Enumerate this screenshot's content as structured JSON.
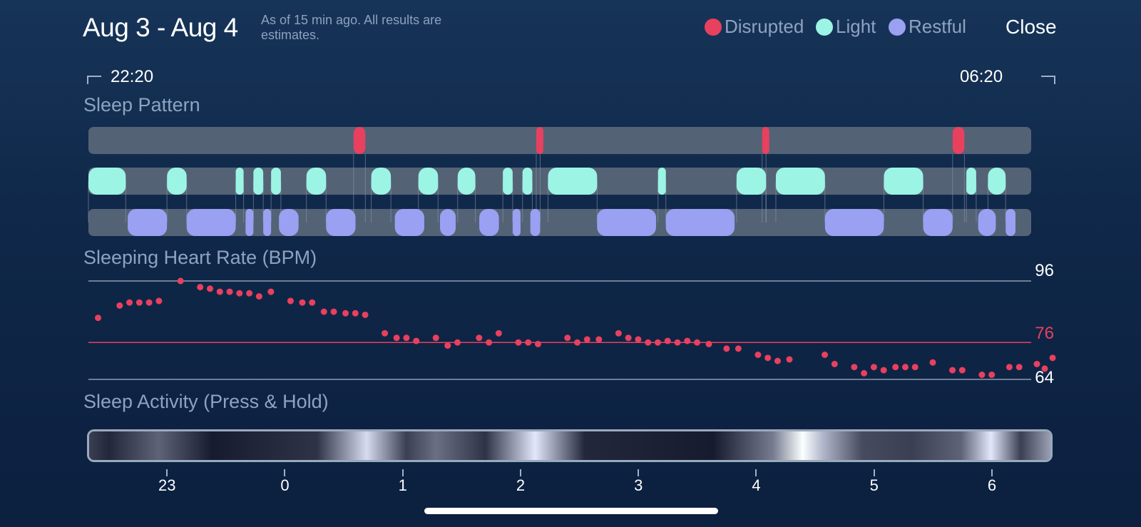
{
  "header": {
    "date_range": "Aug 3 - Aug 4",
    "note": "As of 15 min ago. All results are estimates.",
    "close_label": "Close"
  },
  "legend": [
    {
      "label": "Disrupted",
      "color": "#e8405f"
    },
    {
      "label": "Light",
      "color": "#9cf4e4"
    },
    {
      "label": "Restful",
      "color": "#9aa0f2"
    }
  ],
  "time_range": {
    "start": "22:20",
    "end": "06:20"
  },
  "sections": {
    "pattern": "Sleep Pattern",
    "heart_rate": "Sleeping Heart Rate (BPM)",
    "activity": "Sleep Activity (Press & Hold)"
  },
  "heart_rate_labels": {
    "max": "96",
    "avg": "76",
    "min": "64"
  },
  "colors": {
    "disrupted": "#e8405f",
    "light": "#9cf4e4",
    "restful": "#9aa0f2",
    "track": "#546276",
    "hr_dot": "#e8405f",
    "hr_avg_line": "#e8405f",
    "hr_grid": "#8e9bb0"
  },
  "time_axis": {
    "labels": [
      "23",
      "0",
      "1",
      "2",
      "3",
      "4",
      "5",
      "6"
    ],
    "hours_from_start": [
      0.667,
      1.667,
      2.667,
      3.667,
      4.667,
      5.667,
      6.667,
      7.667
    ]
  },
  "chart_data": [
    {
      "type": "timeline",
      "title": "Sleep Pattern",
      "unit": "minutes since 22:20",
      "categories": [
        "Disrupted",
        "Light",
        "Restful"
      ],
      "segments": {
        "Disrupted": [
          [
            135,
            141
          ],
          [
            228,
            230
          ],
          [
            343,
            345
          ],
          [
            440,
            446
          ]
        ],
        "Light": [
          [
            0,
            19
          ],
          [
            40,
            50
          ],
          [
            75,
            79
          ],
          [
            84,
            89
          ],
          [
            93,
            98
          ],
          [
            111,
            121
          ],
          [
            144,
            154
          ],
          [
            168,
            178
          ],
          [
            188,
            197
          ],
          [
            211,
            216
          ],
          [
            221,
            226
          ],
          [
            234,
            259
          ],
          [
            290,
            294
          ],
          [
            330,
            345
          ],
          [
            350,
            375
          ],
          [
            405,
            425
          ],
          [
            447,
            452
          ],
          [
            458,
            467
          ]
        ],
        "Restful": [
          [
            20,
            40
          ],
          [
            50,
            75
          ],
          [
            80,
            84
          ],
          [
            89,
            93
          ],
          [
            97,
            107
          ],
          [
            121,
            136
          ],
          [
            156,
            171
          ],
          [
            179,
            187
          ],
          [
            199,
            209
          ],
          [
            216,
            220
          ],
          [
            225,
            230
          ],
          [
            259,
            289
          ],
          [
            294,
            329
          ],
          [
            375,
            405
          ],
          [
            425,
            440
          ],
          [
            453,
            462
          ],
          [
            467,
            472
          ]
        ]
      }
    },
    {
      "type": "scatter",
      "title": "Sleeping Heart Rate (BPM)",
      "x_unit": "minutes since 22:20",
      "ylabel": "BPM",
      "ylim": [
        64,
        96
      ],
      "average": 76,
      "points": [
        [
          2,
          84
        ],
        [
          13,
          88
        ],
        [
          18,
          89
        ],
        [
          23,
          89
        ],
        [
          28,
          89
        ],
        [
          33,
          89.5
        ],
        [
          44,
          96
        ],
        [
          54,
          94
        ],
        [
          59,
          93.5
        ],
        [
          64,
          92.5
        ],
        [
          69,
          92.5
        ],
        [
          74,
          92
        ],
        [
          79,
          92
        ],
        [
          84,
          91
        ],
        [
          90,
          92.5
        ],
        [
          100,
          89.5
        ],
        [
          106,
          89
        ],
        [
          111,
          89
        ],
        [
          117,
          86
        ],
        [
          122,
          86
        ],
        [
          128,
          85.5
        ],
        [
          133,
          85.5
        ],
        [
          138,
          85
        ],
        [
          148,
          79
        ],
        [
          154,
          77.5
        ],
        [
          159,
          77.5
        ],
        [
          164,
          76.5
        ],
        [
          174,
          77.5
        ],
        [
          180,
          75
        ],
        [
          185,
          76
        ],
        [
          196,
          77.5
        ],
        [
          201,
          76
        ],
        [
          206,
          79
        ],
        [
          216,
          76
        ],
        [
          221,
          76
        ],
        [
          226,
          75.5
        ],
        [
          241,
          77.5
        ],
        [
          246,
          76
        ],
        [
          251,
          77
        ],
        [
          257,
          77
        ],
        [
          267,
          79
        ],
        [
          272,
          77.5
        ],
        [
          277,
          77
        ],
        [
          282,
          76
        ],
        [
          287,
          76
        ],
        [
          292,
          76.5
        ],
        [
          297,
          76
        ],
        [
          302,
          76.5
        ],
        [
          307,
          76
        ],
        [
          313,
          75.5
        ],
        [
          322,
          74
        ],
        [
          328,
          74
        ],
        [
          338,
          72
        ],
        [
          343,
          71
        ],
        [
          348,
          70
        ],
        [
          354,
          70.5
        ],
        [
          372,
          72
        ],
        [
          377,
          69
        ],
        [
          387,
          68
        ],
        [
          392,
          66
        ],
        [
          397,
          68
        ],
        [
          402,
          67
        ],
        [
          408,
          68
        ],
        [
          413,
          68
        ],
        [
          418,
          68
        ],
        [
          427,
          69.5
        ],
        [
          437,
          67
        ],
        [
          442,
          67
        ],
        [
          452,
          65.5
        ],
        [
          457,
          65.5
        ],
        [
          466,
          68
        ],
        [
          471,
          68
        ],
        [
          480,
          69
        ],
        [
          484,
          67.5
        ],
        [
          488,
          71
        ]
      ]
    },
    {
      "type": "heatmap",
      "title": "Sleep Activity (Press & Hold)",
      "x_unit": "minutes since 22:20",
      "intensity_segments": [
        [
          0,
          0.2
        ],
        [
          10,
          0.1
        ],
        [
          35,
          0.35
        ],
        [
          62,
          0.05
        ],
        [
          115,
          0.15
        ],
        [
          140,
          0.85
        ],
        [
          160,
          0.2
        ],
        [
          175,
          0.4
        ],
        [
          200,
          0.15
        ],
        [
          225,
          0.9
        ],
        [
          250,
          0.1
        ],
        [
          315,
          0.05
        ],
        [
          345,
          0.45
        ],
        [
          360,
          1.0
        ],
        [
          370,
          0.7
        ],
        [
          390,
          0.25
        ],
        [
          415,
          0.2
        ],
        [
          440,
          0.35
        ],
        [
          455,
          0.9
        ],
        [
          470,
          0.2
        ],
        [
          485,
          0.6
        ]
      ]
    }
  ]
}
